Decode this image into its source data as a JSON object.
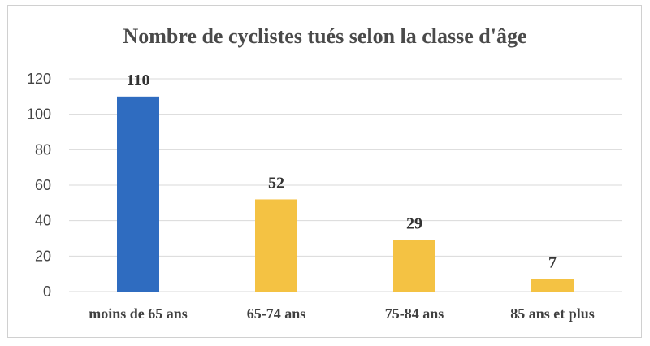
{
  "chart_data": {
    "type": "bar",
    "title": "Nombre de cyclistes tués selon la classe d'âge",
    "categories": [
      "moins de 65 ans",
      "65-74 ans",
      "75-84 ans",
      "85 ans et plus"
    ],
    "values": [
      110,
      52,
      29,
      7
    ],
    "bar_colors": [
      "#2f6cc0",
      "#f4c243",
      "#f4c243",
      "#f4c243"
    ],
    "data_labels": [
      "110",
      "52",
      "29",
      "7"
    ],
    "y_ticks": [
      "0",
      "20",
      "40",
      "60",
      "80",
      "100",
      "120"
    ],
    "ylim": [
      0,
      120
    ],
    "grid": true,
    "legend": "none",
    "xlabel": "",
    "ylabel": ""
  }
}
